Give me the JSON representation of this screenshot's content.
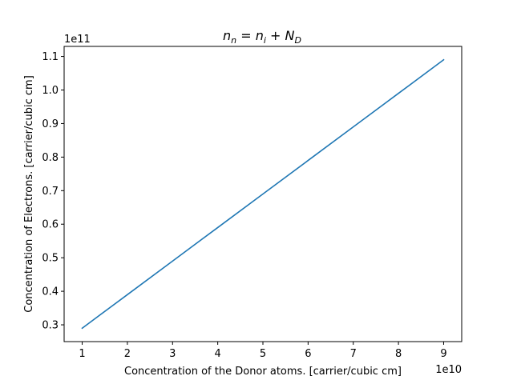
{
  "chart_data": {
    "type": "line",
    "title": {
      "n1": "n",
      "s1": "n",
      "eq": " = ",
      "n2": "n",
      "s2": "i",
      "plus": " + ",
      "n3": "N",
      "s3": "D"
    },
    "xlabel": "Concentration of the Donor atoms. [carrier/cubic cm]",
    "ylabel": "Concentration of Electrons. [carrier/cubic cm]",
    "x_offset_label": "1e10",
    "y_offset_label": "1e11",
    "x_scale": 10000000000.0,
    "y_scale": 100000000000.0,
    "xlim": [
      6000000000.0,
      94000000000.0
    ],
    "ylim": [
      25000000000.0,
      113000000000.0
    ],
    "x_ticks": [
      10000000000.0,
      20000000000.0,
      30000000000.0,
      40000000000.0,
      50000000000.0,
      60000000000.0,
      70000000000.0,
      80000000000.0,
      90000000000.0
    ],
    "y_ticks": [
      30000000000.0,
      40000000000.0,
      50000000000.0,
      60000000000.0,
      70000000000.0,
      80000000000.0,
      90000000000.0,
      100000000000.0,
      110000000000.0
    ],
    "x_tick_labels": [
      "1",
      "2",
      "3",
      "4",
      "5",
      "6",
      "7",
      "8",
      "9"
    ],
    "y_tick_labels": [
      "0.3",
      "0.4",
      "0.5",
      "0.6",
      "0.7",
      "0.8",
      "0.9",
      "1.0",
      "1.1"
    ],
    "grid": false,
    "series": [
      {
        "color": "#1f77b4",
        "x": [
          10000000000.0,
          20000000000.0,
          30000000000.0,
          40000000000.0,
          50000000000.0,
          60000000000.0,
          70000000000.0,
          80000000000.0,
          90000000000.0
        ],
        "y": [
          29000000000.0,
          39000000000.0,
          49000000000.0,
          59000000000.0,
          69000000000.0,
          79000000000.0,
          89000000000.0,
          99000000000.0,
          109000000000.0
        ]
      }
    ]
  }
}
